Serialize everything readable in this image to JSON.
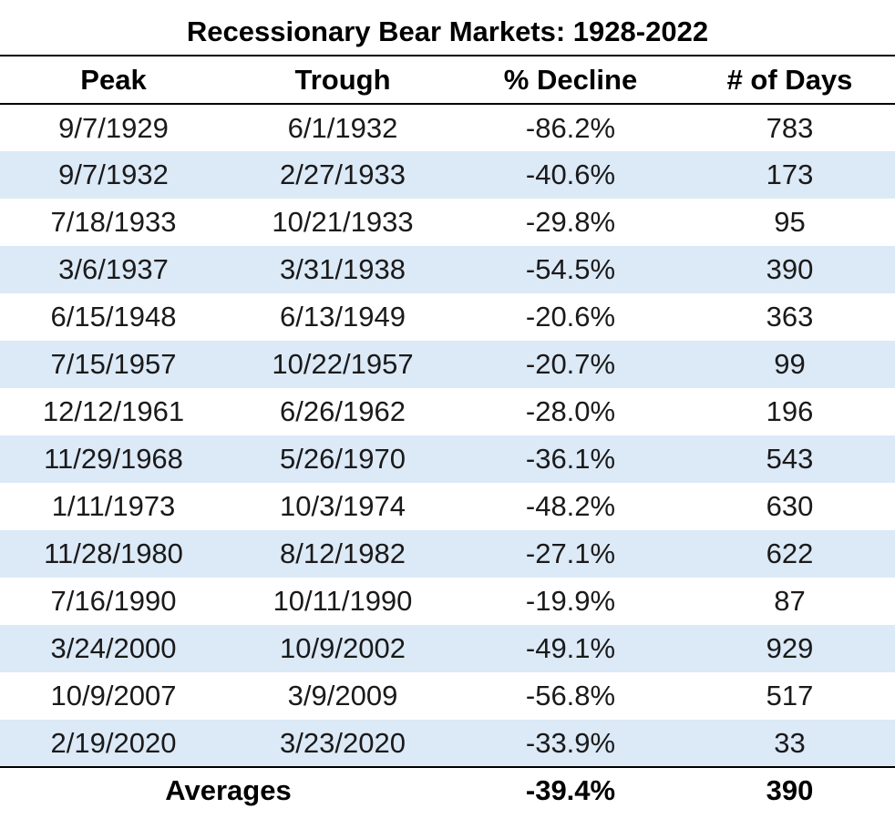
{
  "title": "Recessionary Bear Markets: 1928-2022",
  "headers": {
    "peak": "Peak",
    "trough": "Trough",
    "decline": "% Decline",
    "days": "# of Days"
  },
  "colors": {
    "band": "#dce9f7",
    "rule": "#000000"
  },
  "rows": [
    {
      "peak": "9/7/1929",
      "trough": "6/1/1932",
      "decline": "-86.2%",
      "days": "783"
    },
    {
      "peak": "9/7/1932",
      "trough": "2/27/1933",
      "decline": "-40.6%",
      "days": "173"
    },
    {
      "peak": "7/18/1933",
      "trough": "10/21/1933",
      "decline": "-29.8%",
      "days": "95"
    },
    {
      "peak": "3/6/1937",
      "trough": "3/31/1938",
      "decline": "-54.5%",
      "days": "390"
    },
    {
      "peak": "6/15/1948",
      "trough": "6/13/1949",
      "decline": "-20.6%",
      "days": "363"
    },
    {
      "peak": "7/15/1957",
      "trough": "10/22/1957",
      "decline": "-20.7%",
      "days": "99"
    },
    {
      "peak": "12/12/1961",
      "trough": "6/26/1962",
      "decline": "-28.0%",
      "days": "196"
    },
    {
      "peak": "11/29/1968",
      "trough": "5/26/1970",
      "decline": "-36.1%",
      "days": "543"
    },
    {
      "peak": "1/11/1973",
      "trough": "10/3/1974",
      "decline": "-48.2%",
      "days": "630"
    },
    {
      "peak": "11/28/1980",
      "trough": "8/12/1982",
      "decline": "-27.1%",
      "days": "622"
    },
    {
      "peak": "7/16/1990",
      "trough": "10/11/1990",
      "decline": "-19.9%",
      "days": "87"
    },
    {
      "peak": "3/24/2000",
      "trough": "10/9/2002",
      "decline": "-49.1%",
      "days": "929"
    },
    {
      "peak": "10/9/2007",
      "trough": "3/9/2009",
      "decline": "-56.8%",
      "days": "517"
    },
    {
      "peak": "2/19/2020",
      "trough": "3/23/2020",
      "decline": "-33.9%",
      "days": "33"
    }
  ],
  "averages": {
    "label": "Averages",
    "decline": "-39.4%",
    "days": "390"
  }
}
